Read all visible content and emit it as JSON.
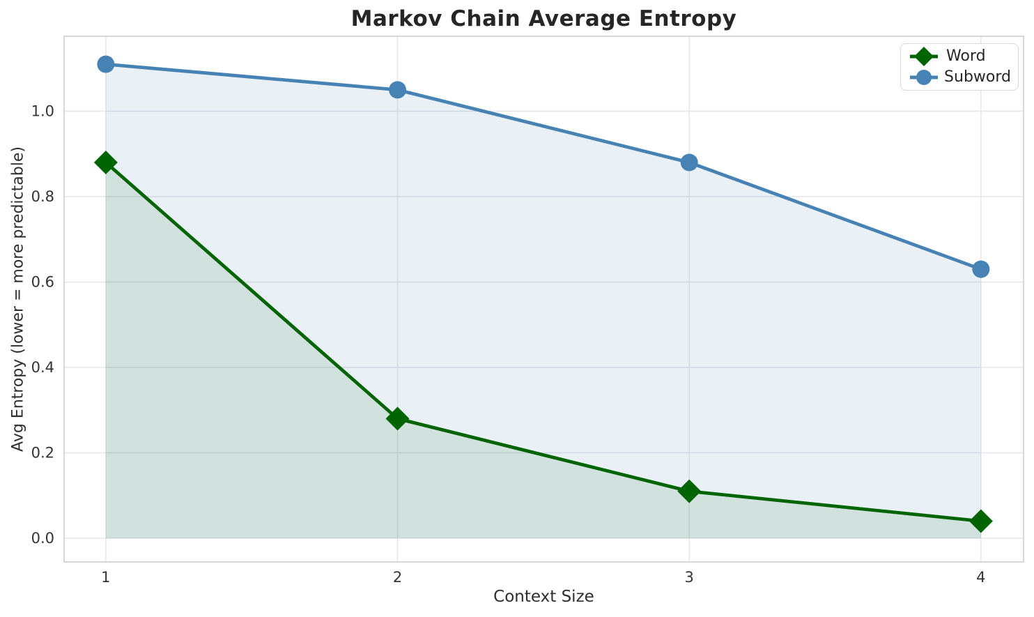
{
  "chart_data": {
    "type": "line",
    "title": "Markov Chain Average Entropy",
    "xlabel": "Context Size",
    "ylabel": "Avg Entropy (lower = more predictable)",
    "x": [
      1,
      2,
      3,
      4
    ],
    "series": [
      {
        "name": "Word",
        "values": [
          0.88,
          0.28,
          0.11,
          0.04
        ],
        "color": "#006400",
        "marker": "diamond",
        "fill_color": "rgba(0,100,0,0.10)"
      },
      {
        "name": "Subword",
        "values": [
          1.11,
          1.05,
          0.88,
          0.63
        ],
        "color": "#4682b4",
        "marker": "circle",
        "fill_color": "rgba(70,130,180,0.12)"
      }
    ],
    "xticks": [
      "1",
      "2",
      "3",
      "4"
    ],
    "yticks": [
      "0.0",
      "0.2",
      "0.4",
      "0.6",
      "0.8",
      "1.0"
    ],
    "xlim": [
      0.857,
      4.146
    ],
    "ylim": [
      -0.0555,
      1.1755
    ],
    "grid": true,
    "area_fill": true,
    "fill_baseline": 0,
    "legend_position": "upper right"
  },
  "styles": {
    "background": "#ffffff",
    "grid_color": "#e4e5ea",
    "spine_color": "#cfcfcf",
    "tick_text_color": "#333333",
    "text_color": "#262626"
  }
}
